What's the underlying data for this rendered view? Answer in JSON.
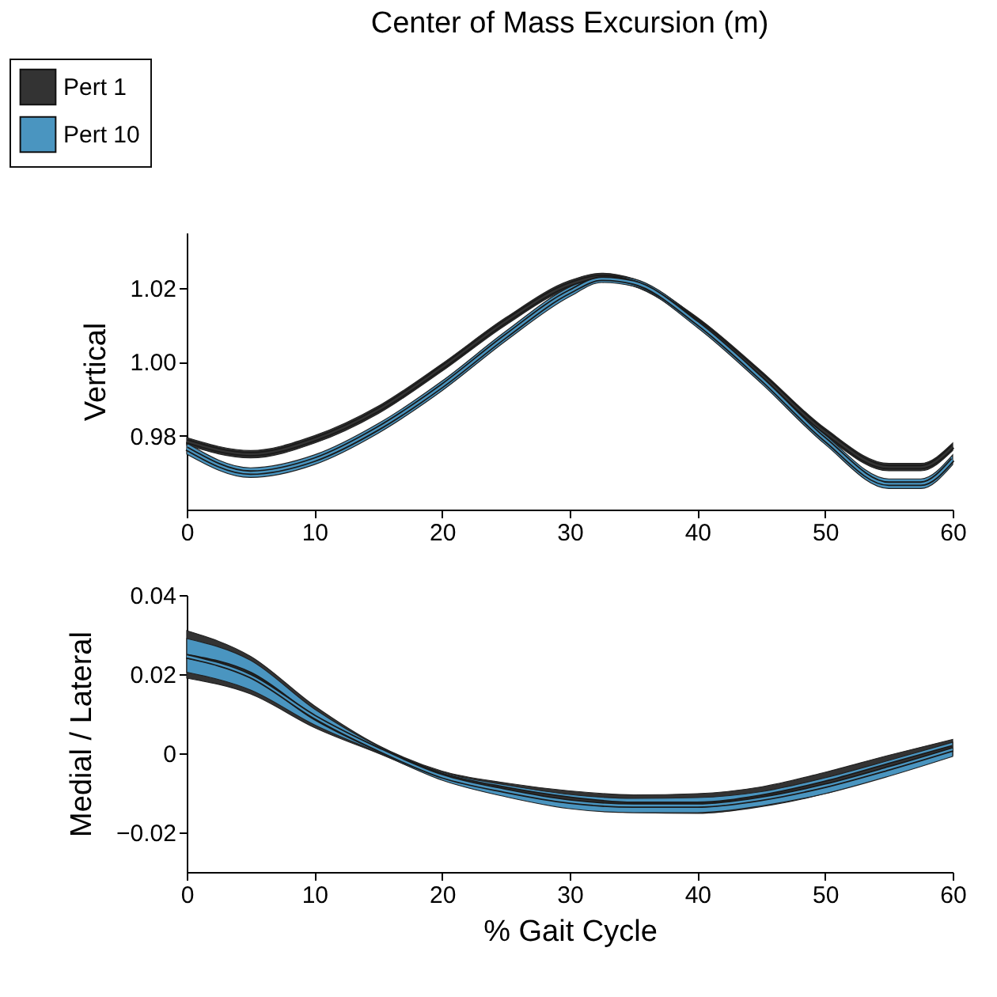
{
  "chart_data": [
    {
      "type": "line",
      "title": "Center of Mass Excursion (m)",
      "ylabel": "Vertical",
      "legend": "top left",
      "grid": false,
      "x": [
        0,
        5,
        10,
        15,
        20,
        25,
        30,
        32.5,
        35,
        40,
        45,
        50,
        55,
        57.5,
        60
      ],
      "xlim": [
        0,
        60
      ],
      "xticks": [
        0,
        10,
        20,
        30,
        40,
        50,
        60
      ],
      "ylim": [
        0.96,
        1.035
      ],
      "yticks": [
        {
          "value": 0.98,
          "label": "0.98"
        },
        {
          "value": 1.0,
          "label": "1.00"
        },
        {
          "value": 1.02,
          "label": "1.02"
        }
      ],
      "series": [
        {
          "name": "Pert 1",
          "color": "#333333",
          "values": [
            0.9785,
            0.975,
            0.979,
            0.987,
            0.9985,
            1.011,
            1.021,
            1.023,
            1.0215,
            1.011,
            0.9965,
            0.981,
            0.9715,
            0.9715,
            0.977
          ],
          "lower": [
            0.9775,
            0.974,
            0.978,
            0.986,
            0.9975,
            1.01,
            1.02,
            1.022,
            1.0205,
            1.01,
            0.9955,
            0.98,
            0.9705,
            0.9705,
            0.976
          ],
          "upper": [
            0.9795,
            0.976,
            0.98,
            0.988,
            0.9995,
            1.012,
            1.022,
            1.024,
            1.0225,
            1.012,
            0.9975,
            0.982,
            0.9725,
            0.9725,
            0.978
          ]
        },
        {
          "name": "Pert 10",
          "color": "#4a95c0",
          "values": [
            0.9765,
            0.97,
            0.9735,
            0.982,
            0.9935,
            1.007,
            1.019,
            1.0225,
            1.0215,
            1.0105,
            0.9955,
            0.979,
            0.967,
            0.967,
            0.9735
          ],
          "lower": [
            0.975,
            0.9687,
            0.9722,
            0.9807,
            0.9922,
            1.0057,
            1.0177,
            1.0215,
            1.0205,
            1.0093,
            0.9942,
            0.9777,
            0.9657,
            0.9657,
            0.9722
          ],
          "upper": [
            0.978,
            0.9713,
            0.9748,
            0.9833,
            0.9948,
            1.0083,
            1.0203,
            1.0235,
            1.0225,
            1.0117,
            0.9968,
            0.9803,
            0.9683,
            0.9683,
            0.9748
          ]
        }
      ]
    },
    {
      "type": "line",
      "xlabel": "% Gait Cycle",
      "ylabel": "Medial / Lateral",
      "legend": false,
      "grid": false,
      "x": [
        0,
        5,
        10,
        15,
        20,
        25,
        30,
        35,
        40,
        45,
        50,
        55,
        60
      ],
      "xlim": [
        0,
        60
      ],
      "xticks": [
        0,
        10,
        20,
        30,
        40,
        50,
        60
      ],
      "ylim": [
        -0.03,
        0.04
      ],
      "yticks": [
        {
          "value": -0.02,
          "label": "−0.02"
        },
        0,
        0.02,
        0.04
      ],
      "series": [
        {
          "color": "#333333",
          "values": [
            0.0245,
            0.02,
            0.009,
            0.001,
            -0.0055,
            -0.009,
            -0.0115,
            -0.0128,
            -0.0128,
            -0.011,
            -0.0075,
            -0.003,
            0.0015
          ],
          "lower": [
            0.019,
            0.015,
            0.0065,
            0.0,
            -0.0065,
            -0.0105,
            -0.0135,
            -0.015,
            -0.0152,
            -0.0135,
            -0.0102,
            -0.0055,
            -0.0005
          ],
          "upper": [
            0.031,
            0.0245,
            0.012,
            0.002,
            -0.0045,
            -0.0075,
            -0.0095,
            -0.0105,
            -0.0102,
            -0.0085,
            -0.0048,
            -0.0005,
            0.0035
          ]
        },
        {
          "color": "#4a95c0",
          "values": [
            0.0245,
            0.0195,
            0.0092,
            0.001,
            -0.0058,
            -0.0095,
            -0.0122,
            -0.0132,
            -0.0132,
            -0.0115,
            -0.0082,
            -0.0038,
            0.001
          ],
          "lower": [
            0.0205,
            0.016,
            0.0072,
            0.0002,
            -0.0068,
            -0.011,
            -0.014,
            -0.015,
            -0.015,
            -0.0133,
            -0.0102,
            -0.0058,
            -0.0008
          ],
          "upper": [
            0.029,
            0.0235,
            0.0112,
            0.0018,
            -0.0048,
            -0.008,
            -0.0104,
            -0.0114,
            -0.0112,
            -0.0097,
            -0.0062,
            -0.0018,
            0.0028
          ]
        }
      ]
    }
  ]
}
